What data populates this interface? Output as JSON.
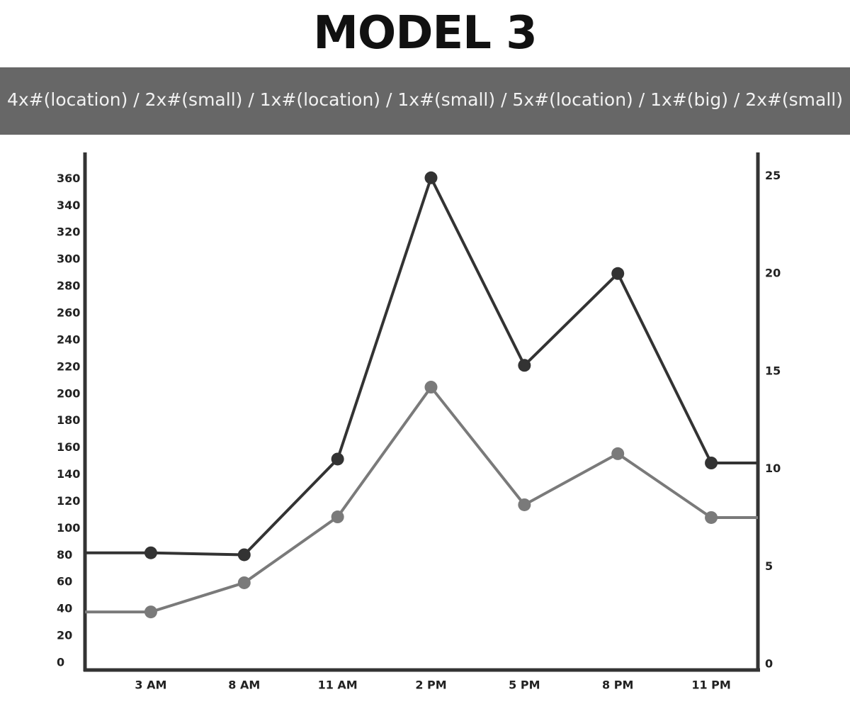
{
  "chart_data": {
    "type": "line",
    "title": "MODEL 3",
    "subtitle": "4x#(location) / 2x#(small) / 1x#(location) / 1x#(small) / 5x#(location) / 1x#(big) / 2x#(small)",
    "categories": [
      "3 AM",
      "8 AM",
      "11 AM",
      "2 PM",
      "5 PM",
      "8 PM",
      "11 PM"
    ],
    "series": [
      {
        "color": "#333333",
        "axis": "y2",
        "values": [
          6.0,
          5.9,
          10.8,
          25.2,
          15.6,
          20.3,
          10.6
        ]
      },
      {
        "color": "#7a7a7a",
        "values": [
          43.2,
          64.9,
          113.9,
          210.4,
          122.9,
          160.9,
          113.4
        ]
      }
    ],
    "ylim": [
      0,
      385
    ],
    "yticks": [
      0,
      20,
      40,
      60,
      80,
      100,
      120,
      140,
      160,
      180,
      200,
      220,
      240,
      260,
      280,
      300,
      320,
      340,
      360
    ],
    "y2lim": [
      0,
      26.5
    ],
    "y2ticks": [
      0,
      5,
      10,
      15,
      20,
      25
    ]
  }
}
